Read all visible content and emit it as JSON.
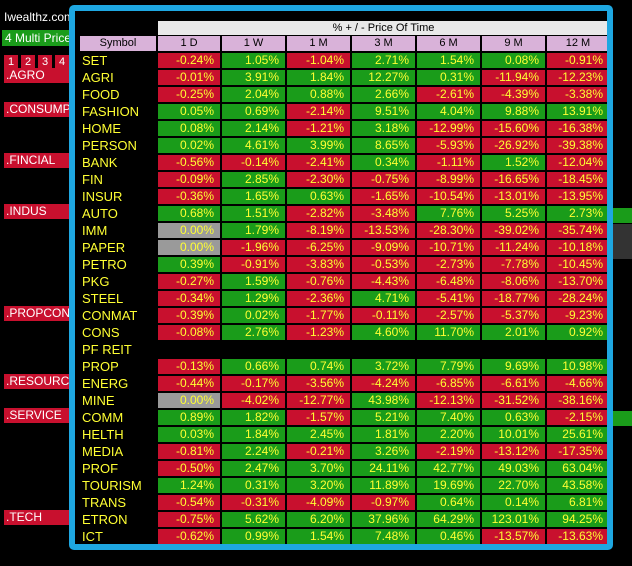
{
  "app": {
    "brand": "Iwealthz.com",
    "multi_price_label": "4 Multi Price",
    "pages": [
      "1",
      "2",
      "3",
      "4"
    ],
    "sectors": [
      ".AGRO",
      ".CONSUMP",
      ".FINCIAL",
      ".INDUS",
      ".PROPCON",
      ".RESOURC",
      ".SERVICE",
      ".TECH"
    ]
  },
  "table": {
    "title": "% + / -  Price Of Time",
    "symbol_header": "Symbol",
    "columns": [
      "1 D",
      "1 W",
      "1 M",
      "3 M",
      "6 M",
      "9 M",
      "12 M"
    ],
    "rows": [
      {
        "symbol": "SET",
        "values": [
          "-0.24%",
          "1.05%",
          "-1.04%",
          "2.71%",
          "1.54%",
          "0.08%",
          "-0.91%"
        ]
      },
      {
        "symbol": "AGRI",
        "values": [
          "-0.01%",
          "3.91%",
          "1.84%",
          "12.27%",
          "0.31%",
          "-11.94%",
          "-12.23%"
        ]
      },
      {
        "symbol": "FOOD",
        "values": [
          "-0.25%",
          "2.04%",
          "0.88%",
          "2.66%",
          "-2.61%",
          "-4.39%",
          "-3.38%"
        ]
      },
      {
        "symbol": "FASHION",
        "values": [
          "0.05%",
          "0.69%",
          "-2.14%",
          "9.51%",
          "4.04%",
          "9.88%",
          "13.91%"
        ]
      },
      {
        "symbol": "HOME",
        "values": [
          "0.08%",
          "2.14%",
          "-1.21%",
          "3.18%",
          "-12.99%",
          "-15.60%",
          "-16.38%"
        ]
      },
      {
        "symbol": "PERSON",
        "values": [
          "0.02%",
          "4.61%",
          "3.99%",
          "8.65%",
          "-5.93%",
          "-26.92%",
          "-39.38%"
        ]
      },
      {
        "symbol": "BANK",
        "values": [
          "-0.56%",
          "-0.14%",
          "-2.41%",
          "0.34%",
          "-1.11%",
          "1.52%",
          "-12.04%"
        ]
      },
      {
        "symbol": "FIN",
        "values": [
          "-0.09%",
          "2.85%",
          "-2.30%",
          "-0.75%",
          "-8.99%",
          "-16.65%",
          "-18.45%"
        ]
      },
      {
        "symbol": "INSUR",
        "values": [
          "-0.36%",
          "1.65%",
          "0.63%",
          "-1.65%",
          "-10.54%",
          "-13.01%",
          "-13.95%"
        ]
      },
      {
        "symbol": "AUTO",
        "values": [
          "0.68%",
          "1.51%",
          "-2.82%",
          "-3.48%",
          "7.76%",
          "5.25%",
          "2.73%"
        ]
      },
      {
        "symbol": "IMM",
        "values": [
          "0.00%",
          "1.79%",
          "-8.19%",
          "-13.53%",
          "-28.30%",
          "-39.02%",
          "-35.74%"
        ]
      },
      {
        "symbol": "PAPER",
        "values": [
          "0.00%",
          "-1.96%",
          "-6.25%",
          "-9.09%",
          "-10.71%",
          "-11.24%",
          "-10.18%"
        ]
      },
      {
        "symbol": "PETRO",
        "values": [
          "0.39%",
          "-0.91%",
          "-3.83%",
          "-0.53%",
          "-2.73%",
          "-7.78%",
          "-10.45%"
        ]
      },
      {
        "symbol": "PKG",
        "values": [
          "-0.27%",
          "1.59%",
          "-0.76%",
          "-4.43%",
          "-6.48%",
          "-8.06%",
          "-13.70%"
        ]
      },
      {
        "symbol": "STEEL",
        "values": [
          "-0.34%",
          "1.29%",
          "-2.36%",
          "4.71%",
          "-5.41%",
          "-18.77%",
          "-28.24%"
        ]
      },
      {
        "symbol": "CONMAT",
        "values": [
          "-0.39%",
          "0.02%",
          "-1.77%",
          "-0.11%",
          "-2.57%",
          "-5.37%",
          "-9.23%"
        ]
      },
      {
        "symbol": "CONS",
        "values": [
          "-0.08%",
          "2.76%",
          "-1.23%",
          "4.60%",
          "11.70%",
          "2.01%",
          "0.92%"
        ]
      },
      {
        "symbol": "PF REIT",
        "values": [
          "",
          "",
          "",
          "",
          "",
          "",
          ""
        ]
      },
      {
        "symbol": "PROP",
        "values": [
          "-0.13%",
          "0.66%",
          "0.74%",
          "3.72%",
          "7.79%",
          "9.69%",
          "10.98%"
        ]
      },
      {
        "symbol": "ENERG",
        "values": [
          "-0.44%",
          "-0.17%",
          "-3.56%",
          "-4.24%",
          "-6.85%",
          "-6.61%",
          "-4.66%"
        ]
      },
      {
        "symbol": "MINE",
        "values": [
          "0.00%",
          "-4.02%",
          "-12.77%",
          "43.98%",
          "-12.13%",
          "-31.52%",
          "-38.16%"
        ]
      },
      {
        "symbol": "COMM",
        "values": [
          "0.89%",
          "1.82%",
          "-1.57%",
          "5.21%",
          "7.40%",
          "0.63%",
          "-2.15%"
        ]
      },
      {
        "symbol": "HELTH",
        "values": [
          "0.03%",
          "1.84%",
          "2.45%",
          "1.81%",
          "2.20%",
          "10.01%",
          "25.61%"
        ]
      },
      {
        "symbol": "MEDIA",
        "values": [
          "-0.81%",
          "2.24%",
          "-0.21%",
          "3.26%",
          "-2.19%",
          "-13.12%",
          "-17.35%"
        ]
      },
      {
        "symbol": "PROF",
        "values": [
          "-0.50%",
          "2.47%",
          "3.70%",
          "24.11%",
          "42.77%",
          "49.03%",
          "63.04%"
        ]
      },
      {
        "symbol": "TOURISM",
        "values": [
          "1.24%",
          "0.31%",
          "3.20%",
          "11.89%",
          "19.69%",
          "22.70%",
          "43.58%"
        ]
      },
      {
        "symbol": "TRANS",
        "values": [
          "-0.54%",
          "-0.31%",
          "-4.09%",
          "-0.97%",
          "0.64%",
          "0.14%",
          "6.81%"
        ]
      },
      {
        "symbol": "ETRON",
        "values": [
          "-0.75%",
          "5.62%",
          "6.20%",
          "37.96%",
          "64.29%",
          "123.01%",
          "94.25%"
        ]
      },
      {
        "symbol": "ICT",
        "values": [
          "-0.62%",
          "0.99%",
          "1.54%",
          "7.48%",
          "0.46%",
          "-13.57%",
          "-13.63%"
        ]
      }
    ]
  },
  "colors": {
    "positive": "#1a9c1a",
    "negative": "#c8102e",
    "zero": "#9a9a9a",
    "text": "#ffff33",
    "frame": "#1ea7e1",
    "header": "#d9b2d9"
  }
}
